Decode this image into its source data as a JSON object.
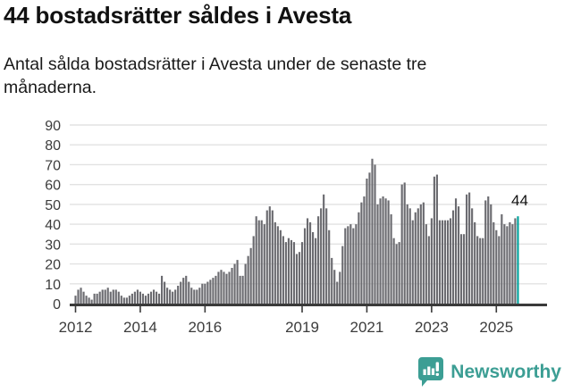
{
  "header": {
    "title": "44 bostadsrätter såldes i Avesta",
    "subtitle": "Antal sålda bostadsrätter i Avesta under de senaste tre månaderna."
  },
  "chart_data": {
    "type": "bar",
    "title": "44 bostadsrätter såldes i Avesta",
    "subtitle": "Antal sålda bostadsrätter i Avesta under de senaste tre månaderna.",
    "ylim": [
      0,
      90
    ],
    "y_ticks": [
      0,
      10,
      20,
      30,
      40,
      50,
      60,
      70,
      80,
      90
    ],
    "x_ticks": [
      {
        "year": 2012,
        "label": "2012"
      },
      {
        "year": 2014,
        "label": "2014"
      },
      {
        "year": 2016,
        "label": "2016"
      },
      {
        "year": 2019,
        "label": "2019"
      },
      {
        "year": 2021,
        "label": "2021"
      },
      {
        "year": 2023,
        "label": "2023"
      },
      {
        "year": 2025,
        "label": "2025"
      }
    ],
    "grid": "horizontal",
    "start_year": 2012,
    "start_month": 1,
    "frequency": "monthly",
    "series": [
      {
        "name": "Antal sålda bostadsrätter under de senaste tre månaderna",
        "values": [
          4,
          7,
          8,
          6,
          4,
          3,
          2,
          5,
          5,
          6,
          7,
          7,
          8,
          6,
          7,
          7,
          6,
          4,
          3,
          3,
          4,
          5,
          6,
          7,
          6,
          5,
          4,
          5,
          6,
          7,
          6,
          5,
          14,
          11,
          8,
          7,
          6,
          7,
          9,
          11,
          13,
          14,
          11,
          8,
          7,
          7,
          8,
          10,
          10,
          11,
          12,
          13,
          14,
          16,
          17,
          16,
          15,
          16,
          18,
          20,
          22,
          14,
          14,
          20,
          24,
          28,
          34,
          44,
          42,
          42,
          40,
          47,
          49,
          47,
          41,
          39,
          37,
          34,
          31,
          33,
          32,
          31,
          25,
          26,
          31,
          38,
          43,
          41,
          36,
          33,
          44,
          48,
          55,
          48,
          37,
          23,
          17,
          11,
          16,
          29,
          38,
          39,
          40,
          38,
          40,
          46,
          51,
          54,
          63,
          66,
          73,
          70,
          50,
          53,
          54,
          53,
          52,
          45,
          33,
          30,
          31,
          60,
          61,
          50,
          48,
          42,
          46,
          48,
          50,
          51,
          40,
          34,
          43,
          64,
          65,
          42,
          42,
          42,
          42,
          43,
          47,
          53,
          49,
          35,
          35,
          55,
          56,
          48,
          41,
          34,
          33,
          33,
          52,
          54,
          50,
          41,
          37,
          34,
          45,
          40,
          39,
          41,
          40,
          43,
          44
        ]
      }
    ],
    "highlight_last_bar": true,
    "last_value": 44,
    "annotation_label": "44",
    "colors": {
      "bar": "#6b6b70",
      "highlight": "#00a19b",
      "gridline": "#e2e2e2",
      "axis": "#3a3a3a",
      "tick_text": "#3c3c3c",
      "annotation_text": "#111111"
    }
  },
  "footer": {
    "brand": "Newsworthy",
    "brand_color": "#3c9e94",
    "logo_icon": "bar-chart-speech-bubble-icon"
  }
}
